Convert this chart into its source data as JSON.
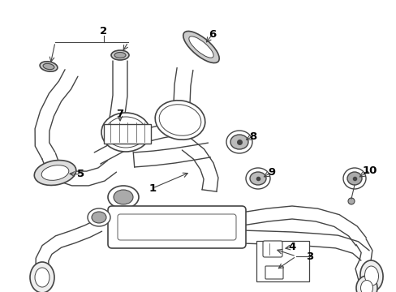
{
  "background": "#ffffff",
  "line_color": "#444444",
  "text_color": "#000000",
  "figsize": [
    4.89,
    3.6
  ],
  "dpi": 100,
  "xlim": [
    0,
    489
  ],
  "ylim": [
    0,
    360
  ]
}
